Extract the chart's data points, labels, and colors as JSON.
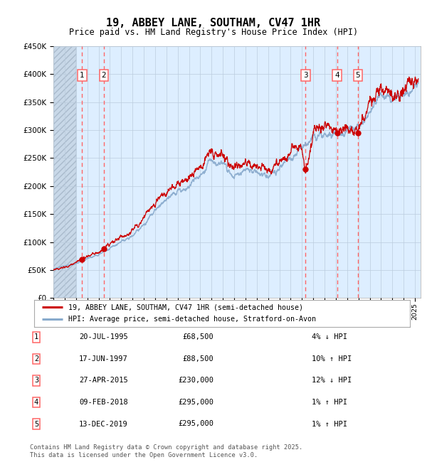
{
  "title": "19, ABBEY LANE, SOUTHAM, CV47 1HR",
  "subtitle": "Price paid vs. HM Land Registry's House Price Index (HPI)",
  "legend_line1": "19, ABBEY LANE, SOUTHAM, CV47 1HR (semi-detached house)",
  "legend_line2": "HPI: Average price, semi-detached house, Stratford-on-Avon",
  "footnote": "Contains HM Land Registry data © Crown copyright and database right 2025.\nThis data is licensed under the Open Government Licence v3.0.",
  "purchases": [
    {
      "label": "1",
      "date": "20-JUL-1995",
      "price": 68500,
      "hpi_rel": "4% ↓ HPI",
      "year": 1995.55
    },
    {
      "label": "2",
      "date": "17-JUN-1997",
      "price": 88500,
      "hpi_rel": "10% ↑ HPI",
      "year": 1997.46
    },
    {
      "label": "3",
      "date": "27-APR-2015",
      "price": 230000,
      "hpi_rel": "12% ↓ HPI",
      "year": 2015.32
    },
    {
      "label": "4",
      "date": "09-FEB-2018",
      "price": 295000,
      "hpi_rel": "1% ↑ HPI",
      "year": 2018.11
    },
    {
      "label": "5",
      "date": "13-DEC-2019",
      "price": 295000,
      "hpi_rel": "1% ↑ HPI",
      "year": 2019.95
    }
  ],
  "ylim": [
    0,
    450000
  ],
  "yticks": [
    0,
    50000,
    100000,
    150000,
    200000,
    250000,
    300000,
    350000,
    400000,
    450000
  ],
  "ytick_labels": [
    "£0",
    "£50K",
    "£100K",
    "£150K",
    "£200K",
    "£250K",
    "£300K",
    "£350K",
    "£400K",
    "£450K"
  ],
  "xlim": [
    1993,
    2025.5
  ],
  "hatch_end_year": 1995.0,
  "line_color_red": "#cc0000",
  "line_color_blue": "#88aacc",
  "background_color": "#ddeeff",
  "grid_color": "#bbccdd",
  "purchase_marker_color": "#cc0000",
  "dashed_line_color": "#ff6666"
}
